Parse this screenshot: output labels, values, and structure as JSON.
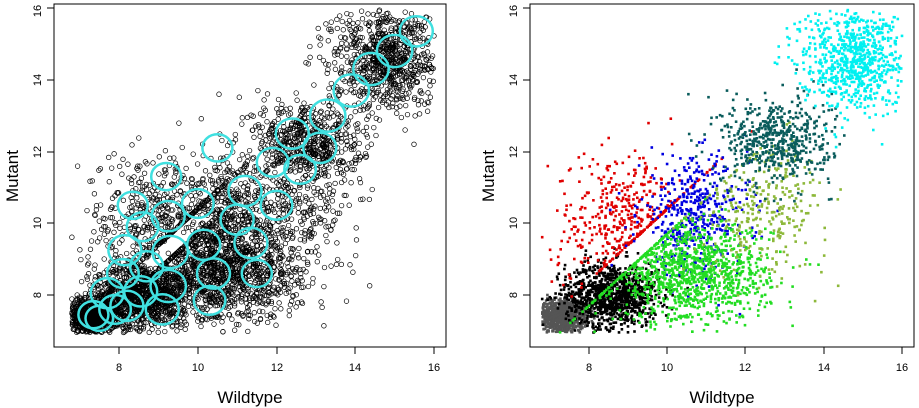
{
  "chart_data": [
    {
      "type": "scatter",
      "panel": "left",
      "xlabel": "Wildtype",
      "ylabel": "Mutant",
      "xlim": [
        6.6,
        16.3
      ],
      "ylim": [
        6.85,
        16.2
      ],
      "xticks": [
        "8",
        "10",
        "12",
        "14",
        "16"
      ],
      "yticks": [
        "8",
        "10",
        "12",
        "14",
        "16"
      ],
      "point_style": "open black circles",
      "circle_color": "#40E0E0",
      "circles": [
        {
          "x": 7.35,
          "y": 7.45,
          "r": 0.38
        },
        {
          "x": 7.5,
          "y": 7.35,
          "r": 0.35
        },
        {
          "x": 7.9,
          "y": 7.6,
          "r": 0.4
        },
        {
          "x": 7.7,
          "y": 8.05,
          "r": 0.42
        },
        {
          "x": 8.2,
          "y": 7.7,
          "r": 0.42
        },
        {
          "x": 8.55,
          "y": 8.1,
          "r": 0.42
        },
        {
          "x": 8.1,
          "y": 8.6,
          "r": 0.4
        },
        {
          "x": 8.7,
          "y": 8.8,
          "r": 0.42
        },
        {
          "x": 8.15,
          "y": 9.25,
          "r": 0.42
        },
        {
          "x": 8.6,
          "y": 9.9,
          "r": 0.4
        },
        {
          "x": 8.35,
          "y": 10.5,
          "r": 0.38
        },
        {
          "x": 9.3,
          "y": 9.2,
          "r": 0.45
        },
        {
          "x": 9.25,
          "y": 8.25,
          "r": 0.45
        },
        {
          "x": 9.1,
          "y": 7.6,
          "r": 0.42
        },
        {
          "x": 9.25,
          "y": 10.2,
          "r": 0.42
        },
        {
          "x": 9.2,
          "y": 11.3,
          "r": 0.38
        },
        {
          "x": 10.15,
          "y": 9.4,
          "r": 0.42
        },
        {
          "x": 10.4,
          "y": 8.6,
          "r": 0.42
        },
        {
          "x": 10.3,
          "y": 7.85,
          "r": 0.4
        },
        {
          "x": 10.0,
          "y": 10.55,
          "r": 0.4
        },
        {
          "x": 10.5,
          "y": 12.1,
          "r": 0.38
        },
        {
          "x": 11.0,
          "y": 10.1,
          "r": 0.42
        },
        {
          "x": 11.2,
          "y": 10.9,
          "r": 0.42
        },
        {
          "x": 11.35,
          "y": 9.45,
          "r": 0.42
        },
        {
          "x": 11.5,
          "y": 8.6,
          "r": 0.38
        },
        {
          "x": 12.0,
          "y": 10.5,
          "r": 0.4
        },
        {
          "x": 11.9,
          "y": 11.7,
          "r": 0.4
        },
        {
          "x": 12.4,
          "y": 12.5,
          "r": 0.42
        },
        {
          "x": 12.6,
          "y": 11.5,
          "r": 0.4
        },
        {
          "x": 13.1,
          "y": 12.1,
          "r": 0.42
        },
        {
          "x": 13.3,
          "y": 13.0,
          "r": 0.45
        },
        {
          "x": 13.9,
          "y": 13.7,
          "r": 0.45
        },
        {
          "x": 14.4,
          "y": 14.3,
          "r": 0.45
        },
        {
          "x": 15.0,
          "y": 14.8,
          "r": 0.45
        },
        {
          "x": 15.55,
          "y": 15.35,
          "r": 0.42
        }
      ]
    },
    {
      "type": "scatter",
      "panel": "right",
      "xlabel": "Wildtype",
      "ylabel": "Mutant",
      "xlim": [
        6.6,
        16.3
      ],
      "ylim": [
        6.85,
        16.2
      ],
      "xticks": [
        "8",
        "10",
        "12",
        "14",
        "16"
      ],
      "yticks": [
        "8",
        "10",
        "12",
        "14",
        "16"
      ],
      "point_style": "small filled squares colored by cluster",
      "clusters": [
        {
          "name": "cluster-gray",
          "color": "#555555",
          "center": [
            7.3,
            7.4
          ],
          "spread": [
            0.35,
            0.25
          ],
          "count": 900
        },
        {
          "name": "cluster-black",
          "color": "#000000",
          "center": [
            8.6,
            8.0
          ],
          "spread": [
            0.6,
            0.45
          ],
          "count": 1100
        },
        {
          "name": "cluster-red",
          "color": "#E00000",
          "center": [
            8.9,
            10.0
          ],
          "spread": [
            0.9,
            1.0
          ],
          "count": 450
        },
        {
          "name": "cluster-blue",
          "color": "#0000E0",
          "center": [
            10.7,
            10.2
          ],
          "spread": [
            0.7,
            0.8
          ],
          "count": 450
        },
        {
          "name": "cluster-green",
          "color": "#22DD22",
          "center": [
            10.6,
            8.6
          ],
          "spread": [
            1.0,
            0.7
          ],
          "count": 1200
        },
        {
          "name": "cluster-olive",
          "color": "#8DB83A",
          "center": [
            12.5,
            10.5
          ],
          "spread": [
            0.8,
            0.9
          ],
          "count": 300
        },
        {
          "name": "cluster-teal",
          "color": "#0A5C5C",
          "center": [
            12.8,
            12.3
          ],
          "spread": [
            0.7,
            0.6
          ],
          "count": 550
        },
        {
          "name": "cluster-cyan",
          "color": "#00F0F0",
          "center": [
            14.8,
            14.6
          ],
          "spread": [
            0.7,
            0.7
          ],
          "count": 800
        }
      ]
    }
  ]
}
